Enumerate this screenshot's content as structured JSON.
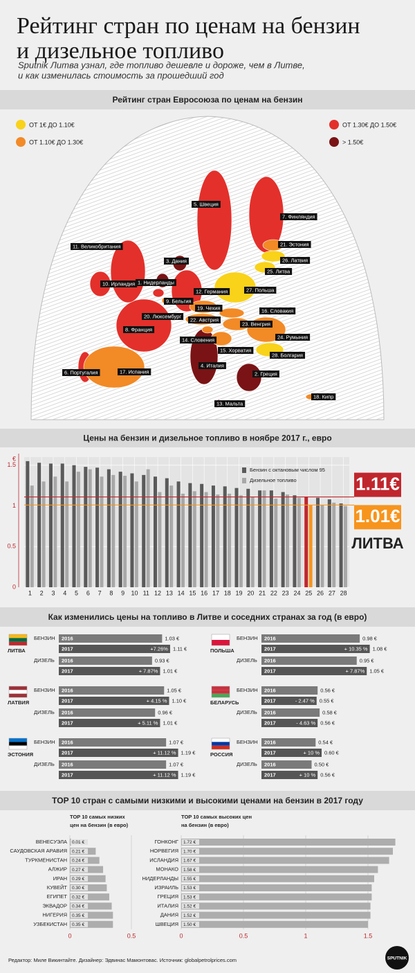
{
  "header": {
    "title": [
      "Рейтинг стран по ценам на бензин",
      "и дизельное топливо"
    ],
    "subtitle": [
      "Sputnik Литва узнал, где топливо дешевле и дороже, чем в Литве,",
      "и как изменилась стоимость за прошедший год"
    ]
  },
  "map": {
    "title": "Рейтинг стран Евросоюза по ценам на бензин",
    "legend": [
      {
        "label": "ОТ 1€ ДО 1.10€",
        "color": "#f9d21a"
      },
      {
        "label": "ОТ 1.10€ ДО 1.30€",
        "color": "#f28a26"
      },
      {
        "label": "ОТ 1.30€ ДО 1.50€",
        "color": "#e3302b"
      },
      {
        "label": "> 1.50€",
        "color": "#7a1315"
      }
    ],
    "countries": [
      {
        "label": "1. Нидерланды",
        "color": "#7a1315"
      },
      {
        "label": "2. Греция",
        "color": "#7a1315"
      },
      {
        "label": "3. Дания",
        "color": "#7a1315"
      },
      {
        "label": "4. Италия",
        "color": "#7a1315"
      },
      {
        "label": "5. Швеция",
        "color": "#e3302b"
      },
      {
        "label": "6. Португалия",
        "color": "#e3302b"
      },
      {
        "label": "7. Финляндия",
        "color": "#e3302b"
      },
      {
        "label": "8. Франция",
        "color": "#e3302b"
      },
      {
        "label": "9. Бельгия",
        "color": "#e3302b"
      },
      {
        "label": "10. Ирландия",
        "color": "#e3302b"
      },
      {
        "label": "11. Великобритания",
        "color": "#e3302b"
      },
      {
        "label": "12. Германия",
        "color": "#e3302b"
      },
      {
        "label": "13. Мальта",
        "color": "#e3302b"
      },
      {
        "label": "14. Словения",
        "color": "#f28a26"
      },
      {
        "label": "15. Хорватия",
        "color": "#f28a26"
      },
      {
        "label": "16. Словакия",
        "color": "#f28a26"
      },
      {
        "label": "17. Испания",
        "color": "#f28a26"
      },
      {
        "label": "18. Кипр",
        "color": "#f28a26"
      },
      {
        "label": "19. Чехия",
        "color": "#f28a26"
      },
      {
        "label": "20. Люксембург",
        "color": "#f28a26"
      },
      {
        "label": "21. Эстония",
        "color": "#f28a26"
      },
      {
        "label": "22. Австрия",
        "color": "#f28a26"
      },
      {
        "label": "23. Венгрия",
        "color": "#f28a26"
      },
      {
        "label": "24. Румыния",
        "color": "#f28a26"
      },
      {
        "label": "25. Литва",
        "color": "#f9d21a"
      },
      {
        "label": "26. Латвия",
        "color": "#f9d21a"
      },
      {
        "label": "27. Польша",
        "color": "#f9d21a"
      },
      {
        "label": "28. Болгария",
        "color": "#f9d21a"
      }
    ]
  },
  "chart_data": [
    {
      "type": "bar",
      "title": "Цены на бензин и дизельное топливо в ноябре 2017 г., евро",
      "y_label": "€",
      "categories": [
        "1",
        "2",
        "3",
        "4",
        "5",
        "6",
        "7",
        "8",
        "9",
        "10",
        "11",
        "12",
        "13",
        "14",
        "15",
        "16",
        "17",
        "18",
        "19",
        "20",
        "21",
        "22",
        "23",
        "24",
        "25",
        "26",
        "27",
        "28"
      ],
      "series": [
        {
          "name": "Бензин с октановым числом 95",
          "color": "#5a5a5a",
          "colors": [
            "#5a5a5a",
            "#5a5a5a",
            "#5a5a5a",
            "#5a5a5a",
            "#5a5a5a",
            "#5a5a5a",
            "#5a5a5a",
            "#5a5a5a",
            "#5a5a5a",
            "#5a5a5a",
            "#5a5a5a",
            "#5a5a5a",
            "#5a5a5a",
            "#5a5a5a",
            "#5a5a5a",
            "#5a5a5a",
            "#5a5a5a",
            "#5a5a5a",
            "#5a5a5a",
            "#5a5a5a",
            "#5a5a5a",
            "#5a5a5a",
            "#5a5a5a",
            "#5a5a5a",
            "#c0272d",
            "#5a5a5a",
            "#5a5a5a",
            "#5a5a5a"
          ],
          "values": [
            1.55,
            1.53,
            1.52,
            1.52,
            1.5,
            1.48,
            1.47,
            1.45,
            1.42,
            1.4,
            1.38,
            1.36,
            1.34,
            1.3,
            1.28,
            1.27,
            1.25,
            1.24,
            1.22,
            1.21,
            1.19,
            1.19,
            1.17,
            1.13,
            1.11,
            1.1,
            1.08,
            1.03
          ]
        },
        {
          "name": "Дизельное топливо",
          "color": "#a8a8a8",
          "colors": [
            "#a8a8a8",
            "#a8a8a8",
            "#a8a8a8",
            "#a8a8a8",
            "#a8a8a8",
            "#a8a8a8",
            "#a8a8a8",
            "#a8a8a8",
            "#a8a8a8",
            "#a8a8a8",
            "#a8a8a8",
            "#a8a8a8",
            "#a8a8a8",
            "#a8a8a8",
            "#a8a8a8",
            "#a8a8a8",
            "#a8a8a8",
            "#a8a8a8",
            "#a8a8a8",
            "#a8a8a8",
            "#a8a8a8",
            "#a8a8a8",
            "#a8a8a8",
            "#a8a8a8",
            "#f7941d",
            "#a8a8a8",
            "#a8a8a8",
            "#a8a8a8"
          ],
          "values": [
            1.25,
            1.3,
            1.36,
            1.3,
            1.42,
            1.45,
            1.36,
            1.38,
            1.37,
            1.3,
            1.45,
            1.17,
            1.25,
            1.15,
            1.18,
            1.17,
            1.14,
            1.15,
            1.13,
            1.11,
            1.19,
            1.09,
            1.14,
            1.1,
            1.01,
            1.01,
            1.04,
            1.0
          ]
        }
      ],
      "reference_lines": [
        {
          "value": 1.11,
          "label": "1.11€",
          "color": "#c0272d"
        },
        {
          "value": 1.01,
          "label": "1.01€",
          "color": "#f7941d"
        }
      ],
      "annotation": "ЛИТВА",
      "ylim": [
        0,
        1.6
      ],
      "yticks": [
        0,
        0.5,
        1,
        1.5
      ],
      "grid": true
    },
    {
      "type": "hbar",
      "title": [
        "TOP 10 самых низких",
        "цен на бензин (в евро)"
      ],
      "categories": [
        "ВЕНЕСУЭЛА",
        "САУДОВСКАЯ АРАВИЯ",
        "ТУРКМЕНИСТАН",
        "АЛЖИР",
        "ИРАН",
        "КУВЕЙТ",
        "ЕГИПЕТ",
        "ЭКВАДОР",
        "НИГЕРИЯ",
        "УЗБЕКИСТАН"
      ],
      "values": [
        0.01,
        0.21,
        0.24,
        0.27,
        0.29,
        0.3,
        0.32,
        0.34,
        0.35,
        0.35
      ],
      "value_labels": [
        "0.01 €",
        "0.21 €",
        "0.24 €",
        "0.27 €",
        "0.29 €",
        "0.30 €",
        "0.32 €",
        "0.34 €",
        "0.35 €",
        "0.35 €"
      ],
      "color": "#adadad",
      "xlim": [
        0,
        0.5
      ],
      "xticks": [
        0,
        0.5
      ]
    },
    {
      "type": "hbar",
      "title": [
        "TOP 10 самых высоких цен",
        "на бензин (в евро)"
      ],
      "categories": [
        "ГОНКОНГ",
        "НОРВЕГИЯ",
        "ИСЛАНДИЯ",
        "МОНАКО",
        "НИДЕРЛАНДЫ",
        "ИЗРАИЛЬ",
        "ГРЕЦИЯ",
        "ИТАЛИЯ",
        "ДАНИЯ",
        "ШВЕЦИЯ"
      ],
      "values": [
        1.72,
        1.7,
        1.67,
        1.58,
        1.55,
        1.53,
        1.53,
        1.52,
        1.52,
        1.5
      ],
      "value_labels": [
        "1.72 €",
        "1.70 €",
        "1.67 €",
        "1.58 €",
        "1.55 €",
        "1.53 €",
        "1.53 €",
        "1.52 €",
        "1.52 €",
        "1.50 €"
      ],
      "color": "#adadad",
      "xlim": [
        0,
        1.75
      ],
      "xticks": [
        0,
        0.5,
        1,
        1.5
      ]
    }
  ],
  "comparison": {
    "title": "Как изменились цены на топливо в Литве и соседних странах за год (в евро)",
    "countries": [
      {
        "name": "ЛИТВА",
        "flag": [
          "#fdb913",
          "#006a44",
          "#c1272d"
        ],
        "fuels": [
          {
            "name": "БЕНЗИН",
            "rows": [
              {
                "year": "2016",
                "value": 1.03,
                "value_label": "1.03 €"
              },
              {
                "year": "2017",
                "value": 1.11,
                "value_label": "1.11 €",
                "change": "+7.26%"
              }
            ]
          },
          {
            "name": "ДИЗЕЛЬ",
            "rows": [
              {
                "year": "2016",
                "value": 0.93,
                "value_label": "0.93 €"
              },
              {
                "year": "2017",
                "value": 1.01,
                "value_label": "1.01 €",
                "change": "+ 7.87%"
              }
            ]
          }
        ]
      },
      {
        "name": "ЛАТВИЯ",
        "flag": [
          "#9e3039",
          "#ffffff",
          "#9e3039"
        ],
        "fuels": [
          {
            "name": "БЕНЗИН",
            "rows": [
              {
                "year": "2016",
                "value": 1.05,
                "value_label": "1.05 €"
              },
              {
                "year": "2017",
                "value": 1.1,
                "value_label": "1.10 €",
                "change": "+ 4.15 %"
              }
            ]
          },
          {
            "name": "ДИЗЕЛЬ",
            "rows": [
              {
                "year": "2016",
                "value": 0.96,
                "value_label": "0.96 €"
              },
              {
                "year": "2017",
                "value": 1.01,
                "value_label": "1.01 €",
                "change": "+ 5.11 %"
              }
            ]
          }
        ]
      },
      {
        "name": "ЭСТОНИЯ",
        "flag": [
          "#0072ce",
          "#000000",
          "#ffffff"
        ],
        "fuels": [
          {
            "name": "БЕНЗИН",
            "rows": [
              {
                "year": "2016",
                "value": 1.07,
                "value_label": "1.07 €"
              },
              {
                "year": "2017",
                "value": 1.19,
                "value_label": "1.19 €",
                "change": "+ 11.12 %"
              }
            ]
          },
          {
            "name": "ДИЗЕЛЬ",
            "rows": [
              {
                "year": "2016",
                "value": 1.07,
                "value_label": "1.07 €"
              },
              {
                "year": "2017",
                "value": 1.19,
                "value_label": "1.19 €",
                "change": "+ 11.12 %"
              }
            ]
          }
        ]
      },
      {
        "name": "ПОЛЬША",
        "flag": [
          "#ffffff",
          "#dc143c"
        ],
        "fuels": [
          {
            "name": "БЕНЗИН",
            "rows": [
              {
                "year": "2016",
                "value": 0.98,
                "value_label": "0.98 €"
              },
              {
                "year": "2017",
                "value": 1.08,
                "value_label": "1.08 €",
                "change": "+ 10.35 %"
              }
            ]
          },
          {
            "name": "ДИЗЕЛЬ",
            "rows": [
              {
                "year": "2016",
                "value": 0.95,
                "value_label": "0.95 €"
              },
              {
                "year": "2017",
                "value": 1.05,
                "value_label": "1.05 €",
                "change": "+ 7.87%"
              }
            ]
          }
        ]
      },
      {
        "name": "БЕЛАРУСЬ",
        "flag": [
          "#c8313e",
          "#c8313e",
          "#4aa657"
        ],
        "fuels": [
          {
            "name": "БЕНЗИН",
            "rows": [
              {
                "year": "2016",
                "value": 0.56,
                "value_label": "0.56 €"
              },
              {
                "year": "2017",
                "value": 0.55,
                "value_label": "0.55 €",
                "change": "- 2.47 %"
              }
            ]
          },
          {
            "name": "ДИЗЕЛЬ",
            "rows": [
              {
                "year": "2016",
                "value": 0.58,
                "value_label": "0.58 €"
              },
              {
                "year": "2017",
                "value": 0.56,
                "value_label": "0.56 €",
                "change": "- 4.63 %"
              }
            ]
          }
        ]
      },
      {
        "name": "РОССИЯ",
        "flag": [
          "#ffffff",
          "#0039a6",
          "#d52b1e"
        ],
        "fuels": [
          {
            "name": "БЕНЗИН",
            "rows": [
              {
                "year": "2016",
                "value": 0.54,
                "value_label": "0.54 €"
              },
              {
                "year": "2017",
                "value": 0.6,
                "value_label": "0.60 €",
                "change": "+ 10 %"
              }
            ]
          },
          {
            "name": "ДИЗЕЛЬ",
            "rows": [
              {
                "year": "2016",
                "value": 0.5,
                "value_label": "0.50 €"
              },
              {
                "year": "2017",
                "value": 0.56,
                "value_label": "0.56 €",
                "change": "+ 10 %"
              }
            ]
          }
        ]
      }
    ]
  },
  "top10_title": "TOP 10 стран с самыми низкими и высокими ценами на бензин в 2017 году",
  "footer": {
    "credits": "Редактор: Миле Викинтайте.  Дизайнер: Эдвинас Мамонтовас.  Источник: globalpetrolprices.com",
    "logo": "SPUTNIK"
  }
}
